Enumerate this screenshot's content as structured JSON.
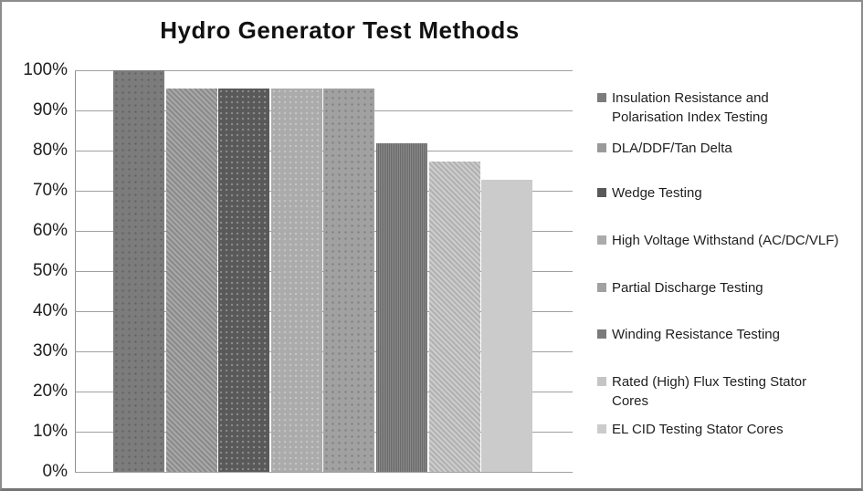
{
  "chart_data": {
    "type": "bar",
    "title": "Hydro Generator Test Methods",
    "categories": [
      "Insulation Resistance and Polarisation Index Testing",
      "DLA/DDF/Tan Delta",
      "Wedge Testing",
      "High Voltage Withstand (AC/DC/VLF)",
      "Partial Discharge Testing",
      "Winding Resistance Testing",
      "Rated (High) Flux Testing Stator Cores",
      "EL CID Testing Stator Cores"
    ],
    "values": [
      100,
      95.5,
      95.5,
      95.5,
      95.5,
      81.8,
      77.3,
      72.7
    ],
    "unit": "%",
    "xlabel": "",
    "ylabel": "",
    "ylim": [
      0,
      100
    ],
    "grid": true,
    "legend_position": "right",
    "bar_colors": [
      "#7c7c7c",
      "#9a9a9a",
      "#595959",
      "#ababab",
      "#a1a1a1",
      "#7a7a7a",
      "#c5c5c5",
      "#cbcbcb"
    ]
  },
  "y_axis": {
    "ticks": [
      "100%",
      "90%",
      "80%",
      "70%",
      "60%",
      "50%",
      "40%",
      "30%",
      "20%",
      "10%",
      "0%"
    ]
  },
  "legend": {
    "items": [
      {
        "label": "Insulation Resistance and Polarisation Index Testing",
        "color": "#7c7c7c"
      },
      {
        "label": "DLA/DDF/Tan Delta",
        "color": "#9a9a9a"
      },
      {
        "label": "Wedge Testing",
        "color": "#595959"
      },
      {
        "label": "High Voltage Withstand (AC/DC/VLF)",
        "color": "#ababab"
      },
      {
        "label": "Partial Discharge Testing",
        "color": "#a1a1a1"
      },
      {
        "label": "Winding Resistance Testing",
        "color": "#7a7a7a"
      },
      {
        "label": "Rated (High) Flux Testing Stator Cores",
        "color": "#c5c5c5"
      },
      {
        "label": "EL CID Testing Stator Cores",
        "color": "#cbcbcb"
      }
    ]
  }
}
